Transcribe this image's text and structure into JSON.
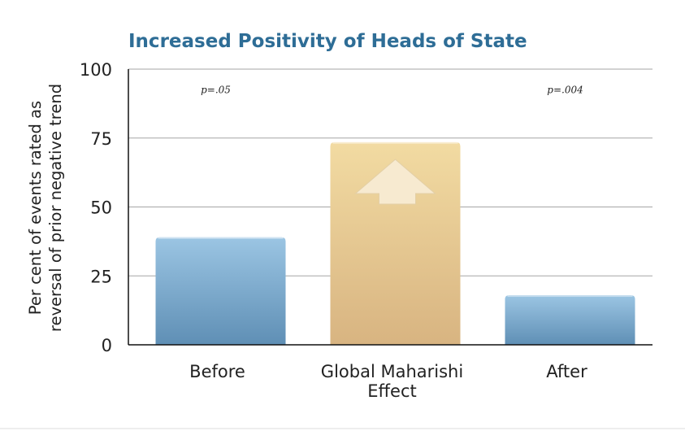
{
  "chart_data": {
    "type": "bar",
    "title": "Increased Positivity of Heads of State",
    "ylabel_lines": [
      "Per cent of events rated as",
      "reversal of prior negative trend"
    ],
    "categories": [
      [
        "Before"
      ],
      [
        "Global Maharishi",
        "Effect"
      ],
      [
        "After"
      ]
    ],
    "values": [
      39,
      73.5,
      18
    ],
    "ylim": [
      0,
      100
    ],
    "yticks": [
      0,
      25,
      50,
      75,
      100
    ],
    "grid": true,
    "bar_colors": [
      {
        "top": "#9bc5e3",
        "bottom": "#5f8fb5"
      },
      {
        "top": "#f2dba2",
        "bottom": "#d8b481"
      },
      {
        "top": "#9bc5e3",
        "bottom": "#5f8fb5"
      }
    ],
    "annotations": [
      {
        "text": "p=.05",
        "between": [
          -0.5,
          0.5
        ],
        "y": 92.5
      },
      {
        "text": "p=.004",
        "between": [
          1.5,
          2.5
        ],
        "y": 92.5
      }
    ],
    "highlight_icon": "up-arrow-icon",
    "title_color": "#2e6d96"
  }
}
